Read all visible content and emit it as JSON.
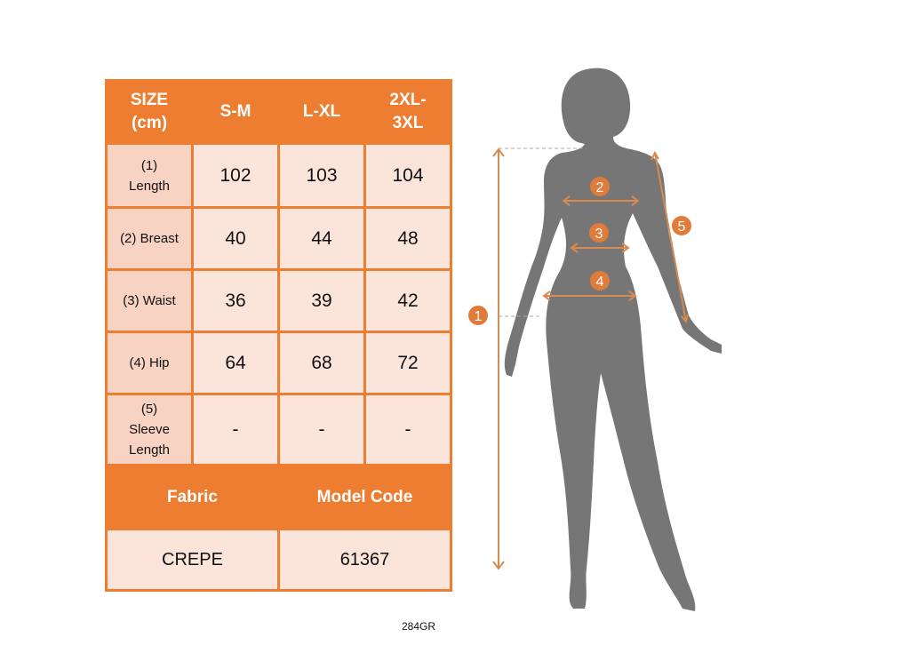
{
  "table": {
    "headers": [
      "SIZE\n(cm)",
      "S-M",
      "L-XL",
      "2XL-\n3XL"
    ],
    "rows": [
      {
        "label": "(1)\nLength",
        "values": [
          "102",
          "103",
          "104"
        ]
      },
      {
        "label": "(2) Breast",
        "values": [
          "40",
          "44",
          "48"
        ]
      },
      {
        "label": "(3) Waist",
        "values": [
          "36",
          "39",
          "42"
        ]
      },
      {
        "label": "(4) Hip",
        "values": [
          "64",
          "68",
          "72"
        ]
      },
      {
        "label": "(5)\nSleeve\nLength",
        "values": [
          "-",
          "-",
          "-"
        ]
      }
    ],
    "footer_headers": [
      "Fabric",
      "Model Code"
    ],
    "footer_values": [
      "CREPE",
      "61367"
    ]
  },
  "diagram": {
    "markers": [
      "1",
      "2",
      "3",
      "4",
      "5"
    ],
    "silhouette_color": "#767676",
    "accent_color": "#ED7D31"
  },
  "caption": "284GR"
}
